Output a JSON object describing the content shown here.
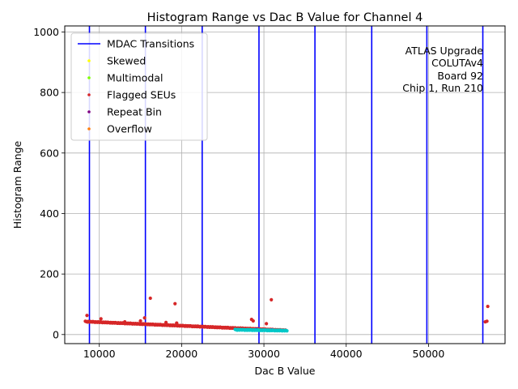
{
  "chart_data": {
    "type": "scatter",
    "title": "Histogram Range vs Dac B Value for Channel 4",
    "xlabel": "Dac B Value",
    "ylabel": "Histogram Range",
    "xlim": [
      5800,
      59300
    ],
    "ylim": [
      -30,
      1020
    ],
    "xticks": [
      10000,
      20000,
      30000,
      40000,
      50000
    ],
    "yticks": [
      0,
      200,
      400,
      600,
      800,
      1000
    ],
    "grid": true,
    "legend_position": "upper left",
    "annotation": [
      "ATLAS Upgrade",
      "COLUTAv4",
      "Board 92",
      "Chip 1, Run 210"
    ],
    "colors": {
      "mdac": "#0000ff",
      "skewed": "#ffff00",
      "multimodal": "#7fff00",
      "flagged": "#d62728",
      "repeat": "#800080",
      "overflow": "#ff7f0e",
      "normal": "#00c8c8"
    },
    "mdac_transitions": [
      8800,
      15600,
      22500,
      29400,
      36200,
      43100,
      49800,
      56600
    ],
    "series": [
      {
        "name": "MDAC Transitions",
        "style": "line",
        "color": "#0000ff"
      },
      {
        "name": "Skewed",
        "style": "point",
        "color": "#ffff00",
        "points": []
      },
      {
        "name": "Multimodal",
        "style": "point",
        "color": "#7fff00",
        "points": []
      },
      {
        "name": "Flagged SEUs",
        "style": "point",
        "color": "#d62728",
        "trend": {
          "x_start": 8300,
          "x_end": 32700,
          "y_start": 43,
          "y_end": 14
        },
        "points": [
          [
            8500,
            63
          ],
          [
            10200,
            52
          ],
          [
            13100,
            42
          ],
          [
            15000,
            45
          ],
          [
            15500,
            55
          ],
          [
            16200,
            120
          ],
          [
            18100,
            40
          ],
          [
            19200,
            102
          ],
          [
            19400,
            38
          ],
          [
            28500,
            50
          ],
          [
            28700,
            45
          ],
          [
            30300,
            36
          ],
          [
            30900,
            115
          ],
          [
            56900,
            42
          ],
          [
            57100,
            44
          ],
          [
            57200,
            93
          ]
        ]
      },
      {
        "name": "Repeat Bin",
        "style": "point",
        "color": "#800080",
        "points": [
          [
            29100,
            18
          ],
          [
            31000,
            16
          ]
        ]
      },
      {
        "name": "Overflow",
        "style": "point",
        "color": "#ff7f0e",
        "points": []
      },
      {
        "style": "point",
        "color": "#00c8c8",
        "trend": {
          "x_start": 26500,
          "x_end": 32800,
          "y_start": 16,
          "y_end": 13
        }
      }
    ]
  }
}
